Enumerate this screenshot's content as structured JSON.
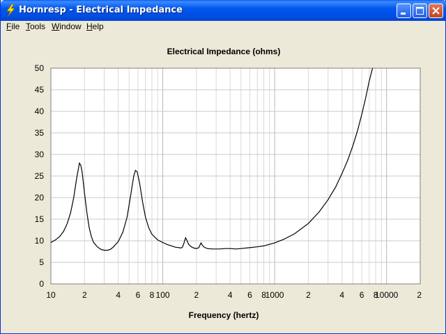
{
  "window": {
    "title": "Hornresp - Electrical Impedance",
    "icon": "lightning-icon"
  },
  "menu": [
    {
      "label": "File",
      "underline": "F",
      "rest": "ile"
    },
    {
      "label": "Tools",
      "underline": "T",
      "rest": "ools"
    },
    {
      "label": "Window",
      "underline": "W",
      "rest": "indow"
    },
    {
      "label": "Help",
      "underline": "H",
      "rest": "elp"
    }
  ],
  "colors": {
    "titlebar": "#0058ee",
    "background": "#ece9d8",
    "plot_background": "#ffffff",
    "grid": "#c8c8c8",
    "curve": "#000000"
  },
  "chart_data": {
    "type": "line",
    "title": "Electrical Impedance (ohms)",
    "xlabel": "Frequency (hertz)",
    "ylabel": "",
    "xscale": "log",
    "xlim": [
      10,
      20000
    ],
    "ylim": [
      0,
      50
    ],
    "yticks": [
      0,
      5,
      10,
      15,
      20,
      25,
      30,
      35,
      40,
      45,
      50
    ],
    "xtick_labels": [
      {
        "x": 10,
        "label": "10"
      },
      {
        "x": 20,
        "label": "2"
      },
      {
        "x": 40,
        "label": "4"
      },
      {
        "x": 60,
        "label": "6"
      },
      {
        "x": 80,
        "label": "8"
      },
      {
        "x": 100,
        "label": "100"
      },
      {
        "x": 200,
        "label": "2"
      },
      {
        "x": 400,
        "label": "4"
      },
      {
        "x": 600,
        "label": "6"
      },
      {
        "x": 800,
        "label": "8"
      },
      {
        "x": 1000,
        "label": "1000"
      },
      {
        "x": 2000,
        "label": "2"
      },
      {
        "x": 4000,
        "label": "4"
      },
      {
        "x": 6000,
        "label": "6"
      },
      {
        "x": 8000,
        "label": "8"
      },
      {
        "x": 10000,
        "label": "10000"
      },
      {
        "x": 20000,
        "label": "2"
      }
    ],
    "grid": true,
    "series": [
      {
        "points": [
          [
            10,
            9.6
          ],
          [
            11,
            10.2
          ],
          [
            12,
            11
          ],
          [
            13,
            12.2
          ],
          [
            14,
            14
          ],
          [
            15,
            16.5
          ],
          [
            16,
            20
          ],
          [
            17,
            24.5
          ],
          [
            18,
            28
          ],
          [
            18.5,
            27.5
          ],
          [
            19,
            26
          ],
          [
            20,
            21
          ],
          [
            21,
            16.5
          ],
          [
            22,
            13
          ],
          [
            23,
            11
          ],
          [
            24,
            9.7
          ],
          [
            26,
            8.6
          ],
          [
            28,
            8
          ],
          [
            30,
            7.8
          ],
          [
            32,
            7.8
          ],
          [
            34,
            8
          ],
          [
            36,
            8.5
          ],
          [
            40,
            9.8
          ],
          [
            44,
            12
          ],
          [
            48,
            15.5
          ],
          [
            52,
            21
          ],
          [
            55,
            25
          ],
          [
            57,
            26.3
          ],
          [
            59,
            26
          ],
          [
            62,
            23.5
          ],
          [
            66,
            19
          ],
          [
            70,
            15.5
          ],
          [
            75,
            13
          ],
          [
            80,
            11.5
          ],
          [
            90,
            10.2
          ],
          [
            100,
            9.6
          ],
          [
            110,
            9.1
          ],
          [
            120,
            8.8
          ],
          [
            130,
            8.5
          ],
          [
            140,
            8.4
          ],
          [
            145,
            8.3
          ],
          [
            150,
            8.5
          ],
          [
            155,
            9.5
          ],
          [
            160,
            10.7
          ],
          [
            165,
            10
          ],
          [
            170,
            9.2
          ],
          [
            180,
            8.6
          ],
          [
            190,
            8.3
          ],
          [
            200,
            8.2
          ],
          [
            210,
            8.4
          ],
          [
            215,
            9
          ],
          [
            220,
            9.5
          ],
          [
            225,
            9
          ],
          [
            235,
            8.5
          ],
          [
            250,
            8.2
          ],
          [
            280,
            8.1
          ],
          [
            320,
            8.1
          ],
          [
            360,
            8.2
          ],
          [
            400,
            8.2
          ],
          [
            450,
            8.1
          ],
          [
            500,
            8.2
          ],
          [
            600,
            8.4
          ],
          [
            700,
            8.6
          ],
          [
            800,
            8.8
          ],
          [
            1000,
            9.5
          ],
          [
            1200,
            10.3
          ],
          [
            1500,
            11.6
          ],
          [
            2000,
            14
          ],
          [
            2500,
            16.7
          ],
          [
            3000,
            19.5
          ],
          [
            3500,
            22.4
          ],
          [
            4000,
            25.6
          ],
          [
            4500,
            28.7
          ],
          [
            5000,
            32
          ],
          [
            5500,
            35.5
          ],
          [
            6000,
            39.2
          ],
          [
            6500,
            43
          ],
          [
            7000,
            47
          ],
          [
            7500,
            50
          ]
        ]
      }
    ]
  }
}
